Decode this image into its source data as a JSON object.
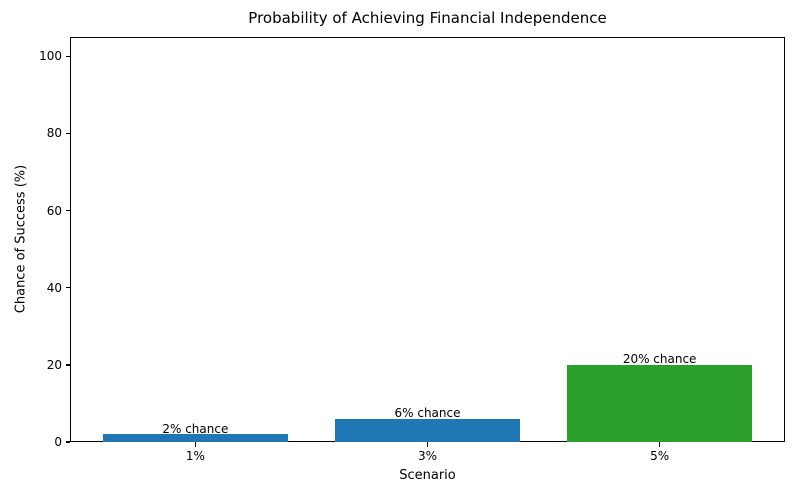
{
  "chart_data": {
    "type": "bar",
    "title": "Probability of Achieving Financial Independence",
    "xlabel": "Scenario",
    "ylabel": "Chance of Success (%)",
    "categories": [
      "1%",
      "3%",
      "5%"
    ],
    "values": [
      2,
      6,
      20
    ],
    "bar_labels": [
      "2% chance",
      "6% chance",
      "20% chance"
    ],
    "bar_colors": [
      "#1f77b4",
      "#1f77b4",
      "#2ca02c"
    ],
    "yticks": [
      0,
      20,
      40,
      60,
      80,
      100
    ],
    "ylim": [
      0,
      105
    ],
    "grid": false,
    "legend_position": "none",
    "axis_color": "#000000",
    "text_color": "#000000",
    "background_color": "#ffffff"
  }
}
